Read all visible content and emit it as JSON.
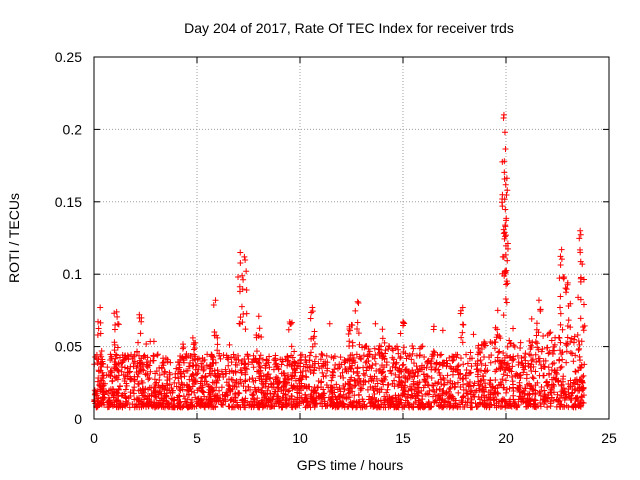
{
  "chart_data": {
    "type": "scatter",
    "title": "Day 204 of 2017, Rate Of TEC Index for receiver trds",
    "xlabel": "GPS time / hours",
    "ylabel": "ROTI / TECUs",
    "xlim": [
      0,
      25
    ],
    "ylim": [
      0,
      0.25
    ],
    "x_ticks": [
      0,
      5,
      10,
      15,
      20,
      25
    ],
    "y_ticks": [
      0,
      0.05,
      0.1,
      0.15,
      0.2,
      0.25
    ],
    "x_tick_labels": [
      "0",
      "5",
      "10",
      "15",
      "20",
      "25"
    ],
    "y_tick_labels": [
      "0",
      "0.05",
      "0.1",
      "0.15",
      "0.2",
      "0.25"
    ],
    "grid": true,
    "marker": "+",
    "color": "#ff0000",
    "series": [
      {
        "name": "ROTI",
        "description_points": "dense band of samples across 0-24 h, mostly 0.01-0.05 TECU/min",
        "baseline_range": [
          0.008,
          0.045
        ],
        "x_range": [
          0,
          23.8
        ],
        "peaks": [
          {
            "x": 0.3,
            "y": 0.077
          },
          {
            "x": 1.1,
            "y": 0.074
          },
          {
            "x": 2.2,
            "y": 0.072
          },
          {
            "x": 4.8,
            "y": 0.056
          },
          {
            "x": 5.9,
            "y": 0.082
          },
          {
            "x": 7.1,
            "y": 0.115
          },
          {
            "x": 7.3,
            "y": 0.112
          },
          {
            "x": 8.0,
            "y": 0.071
          },
          {
            "x": 9.5,
            "y": 0.067
          },
          {
            "x": 10.6,
            "y": 0.077
          },
          {
            "x": 12.5,
            "y": 0.065
          },
          {
            "x": 12.8,
            "y": 0.081
          },
          {
            "x": 14.0,
            "y": 0.062
          },
          {
            "x": 15.0,
            "y": 0.067
          },
          {
            "x": 16.5,
            "y": 0.064
          },
          {
            "x": 17.9,
            "y": 0.077
          },
          {
            "x": 19.6,
            "y": 0.075
          },
          {
            "x": 19.9,
            "y": 0.21
          },
          {
            "x": 19.95,
            "y": 0.198
          },
          {
            "x": 19.92,
            "y": 0.178
          },
          {
            "x": 19.97,
            "y": 0.133
          },
          {
            "x": 20.0,
            "y": 0.127
          },
          {
            "x": 21.6,
            "y": 0.082
          },
          {
            "x": 22.7,
            "y": 0.117
          },
          {
            "x": 23.0,
            "y": 0.094
          },
          {
            "x": 23.6,
            "y": 0.13
          },
          {
            "x": 23.7,
            "y": 0.107
          }
        ]
      }
    ]
  }
}
